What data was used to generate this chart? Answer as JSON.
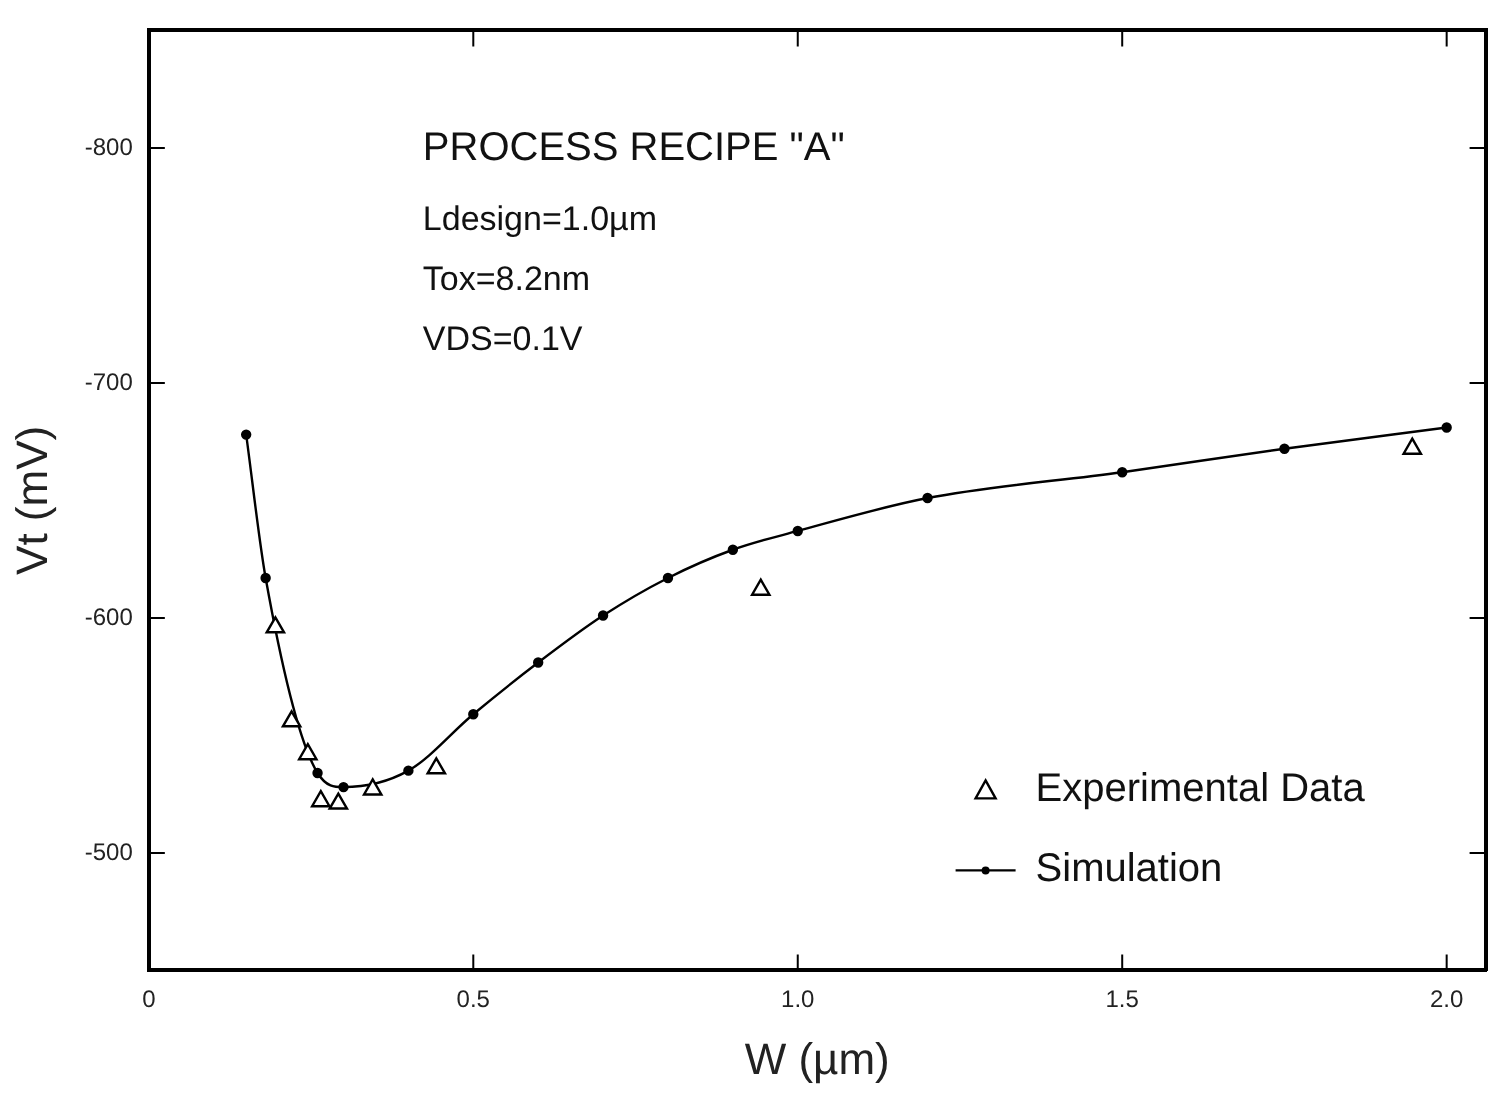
{
  "chart_data": {
    "type": "line",
    "xlabel": "W (µm)",
    "ylabel": "Vt (mV)",
    "annotations": [
      "PROCESS RECIPE \"A\"",
      "Ldesign=1.0µm",
      "Tox=8.2nm",
      "VDS=0.1V"
    ],
    "xlim": [
      0,
      2.06
    ],
    "xticks": [
      0,
      {
        "value": 0.5,
        "label": "0.5"
      },
      {
        "value": 1,
        "label": "1.0"
      },
      {
        "value": 1.5,
        "label": "1.5"
      },
      {
        "value": 2,
        "label": "2.0"
      }
    ],
    "ylim": [
      -450,
      -850
    ],
    "yticks": [
      -500,
      -600,
      -700,
      -800
    ],
    "grid": false,
    "legend": "bottom right",
    "series": [
      {
        "name": "Experimental Data",
        "type": "scatter",
        "marker": "triangle",
        "color": "#000000",
        "x": [
          0.195,
          0.22,
          0.245,
          0.265,
          0.292,
          0.345,
          0.443,
          0.943,
          1.947
        ],
        "values": [
          -596,
          -556,
          -542,
          -522,
          -521,
          -527,
          -536,
          -612,
          -672
        ]
      },
      {
        "name": "Simulation",
        "type": "line",
        "marker": "circle",
        "color": "#000000",
        "x": [
          0.15,
          0.18,
          0.26,
          0.3,
          0.4,
          0.5,
          0.6,
          0.7,
          0.8,
          0.9,
          1.0,
          1.2,
          1.5,
          1.75,
          2.0
        ],
        "values": [
          -678,
          -617,
          -534,
          -528,
          -535,
          -559,
          -581,
          -601,
          -617,
          -629,
          -637,
          -651,
          -662,
          -672,
          -681
        ]
      }
    ]
  }
}
